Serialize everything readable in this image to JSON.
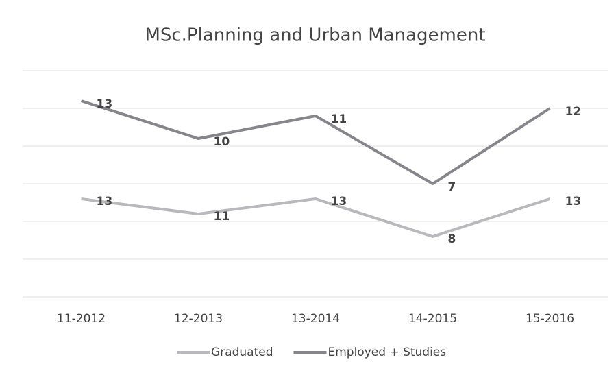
{
  "chart_data": {
    "type": "line",
    "stacked": true,
    "title": "MSc.Planning and Urban Management",
    "categories": [
      "11-2012",
      "12-2013",
      "13-2014",
      "14-2015",
      "15-2016"
    ],
    "series": [
      {
        "name": "Graduated",
        "color": "#b9b9bd",
        "values": [
          13,
          11,
          13,
          8,
          13
        ]
      },
      {
        "name": "Employed + Studies",
        "color": "#85858c",
        "values": [
          13,
          10,
          11,
          7,
          12
        ]
      }
    ],
    "ylim": [
      0,
      30
    ],
    "yticks": [
      0,
      5,
      10,
      15,
      20,
      25,
      30
    ],
    "grid": true,
    "legend": "bottom"
  }
}
